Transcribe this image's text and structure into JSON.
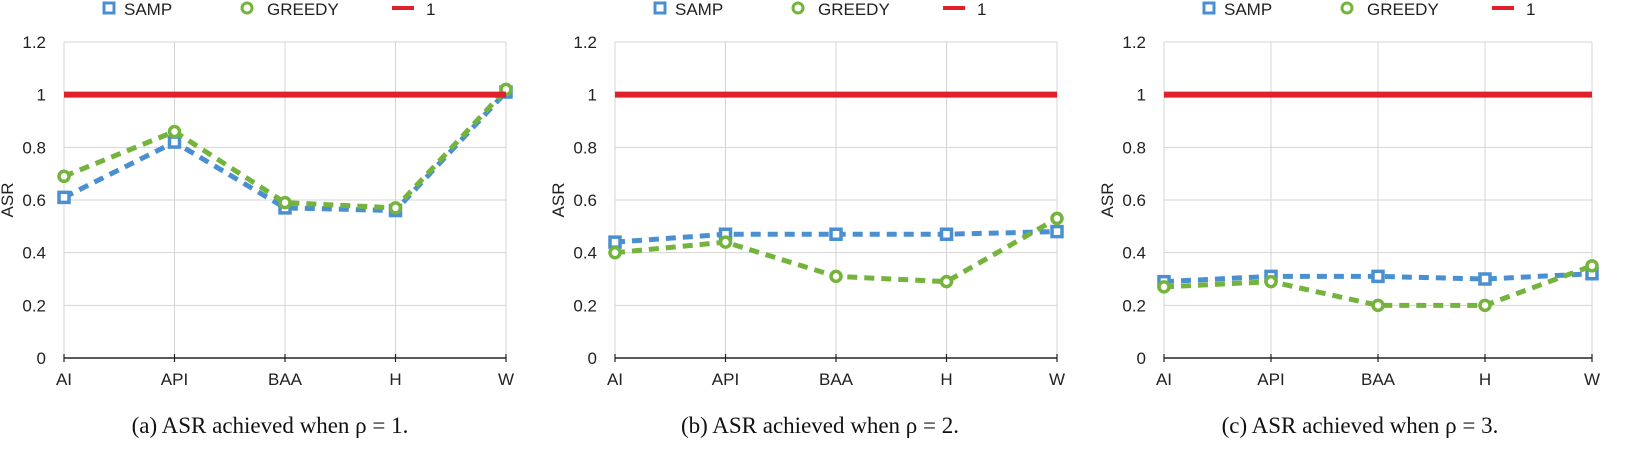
{
  "colors": {
    "samp": "#4a90d0",
    "greedy": "#74b43c",
    "ref": "#e0202a",
    "grid": "#d4d4d4"
  },
  "chart_data": [
    {
      "type": "line",
      "caption": "(a) ASR achieved when ρ = 1.",
      "categories": [
        "AI",
        "API",
        "BAA",
        "H",
        "W"
      ],
      "ylabel": "ASR",
      "ylim": [
        0,
        1.2
      ],
      "yticks": [
        "0",
        "0.2",
        "0.4",
        "0.6",
        "0.8",
        "1",
        "1.2"
      ],
      "legend_position": "top",
      "series": [
        {
          "name": "SAMP",
          "values": [
            0.61,
            0.82,
            0.57,
            0.56,
            1.01
          ]
        },
        {
          "name": "GREEDY",
          "values": [
            0.69,
            0.86,
            0.59,
            0.57,
            1.02
          ]
        },
        {
          "name": "1",
          "values": [
            1,
            1,
            1,
            1,
            1
          ]
        }
      ]
    },
    {
      "type": "line",
      "caption": "(b) ASR achieved when ρ = 2.",
      "categories": [
        "AI",
        "API",
        "BAA",
        "H",
        "W"
      ],
      "ylabel": "ASR",
      "ylim": [
        0,
        1.2
      ],
      "yticks": [
        "0",
        "0.2",
        "0.4",
        "0.6",
        "0.8",
        "1",
        "1.2"
      ],
      "legend_position": "top",
      "series": [
        {
          "name": "SAMP",
          "values": [
            0.44,
            0.47,
            0.47,
            0.47,
            0.48
          ]
        },
        {
          "name": "GREEDY",
          "values": [
            0.4,
            0.44,
            0.31,
            0.29,
            0.53
          ]
        },
        {
          "name": "1",
          "values": [
            1,
            1,
            1,
            1,
            1
          ]
        }
      ]
    },
    {
      "type": "line",
      "caption": "(c) ASR achieved when ρ = 3.",
      "categories": [
        "AI",
        "API",
        "BAA",
        "H",
        "W"
      ],
      "ylabel": "ASR",
      "ylim": [
        0,
        1.2
      ],
      "yticks": [
        "0",
        "0.2",
        "0.4",
        "0.6",
        "0.8",
        "1",
        "1.2"
      ],
      "legend_position": "top",
      "series": [
        {
          "name": "SAMP",
          "values": [
            0.29,
            0.31,
            0.31,
            0.3,
            0.32
          ]
        },
        {
          "name": "GREEDY",
          "values": [
            0.27,
            0.29,
            0.2,
            0.2,
            0.35
          ]
        },
        {
          "name": "1",
          "values": [
            1,
            1,
            1,
            1,
            1
          ]
        }
      ]
    }
  ]
}
